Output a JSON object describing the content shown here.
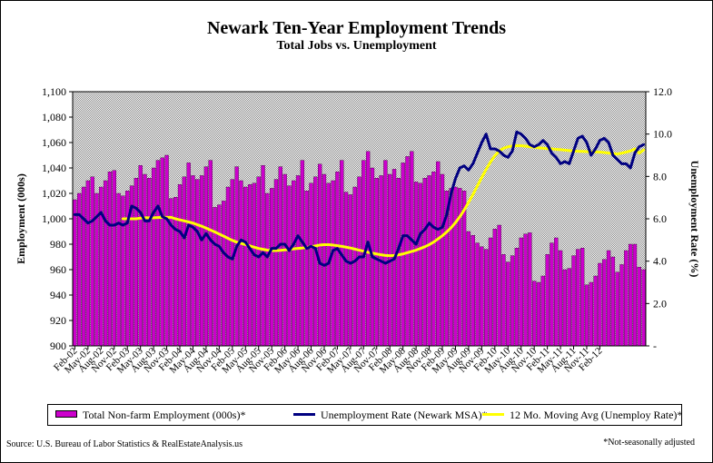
{
  "title": "Newark Ten-Year Employment Trends",
  "subtitle": "Total Jobs vs. Unemployment",
  "legend": [
    "Total Non-farm Employment (000s)*",
    "Unemployment Rate (Newark MSA)*",
    "12 Mo. Moving Avg (Unemploy Rate)*"
  ],
  "source": "Source: U.S. Bureau of Labor Statistics & RealEstateAnalysis.us",
  "footnote": "*Not-seasonally adjusted",
  "colors": {
    "bars": "#CC00CC",
    "unemployment_line": "#000080",
    "moving_avg_line": "#FFFF00",
    "plot_background": "#C8C8C8"
  },
  "chart_data": {
    "type": "bar",
    "xlabel": "",
    "ylabel": "Employment (000s)",
    "y2label": "Unemployment Rate (%)",
    "ylim": [
      900,
      1100
    ],
    "y2lim": [
      0,
      12
    ],
    "yticks": [
      "900",
      "920",
      "940",
      "960",
      "980",
      "1,000",
      "1,020",
      "1,040",
      "1,060",
      "1,080",
      "1,100"
    ],
    "y2ticks": [
      "-",
      "2.0",
      "4.0",
      "6.0",
      "8.0",
      "10.0",
      "12.0"
    ],
    "grid": false,
    "legend_position": "bottom",
    "x_tick_labels": [
      "Feb-02",
      "May-02",
      "Aug-02",
      "Nov-02",
      "Feb-03",
      "May-03",
      "Aug-03",
      "Nov-03",
      "Feb-04",
      "May-04",
      "Aug-04",
      "Nov-04",
      "Feb-05",
      "May-05",
      "Aug-05",
      "Nov-05",
      "Feb-06",
      "May-06",
      "Aug-06",
      "Nov-06",
      "Feb-07",
      "May-07",
      "Aug-07",
      "Nov-07",
      "Feb-08",
      "May-08",
      "Aug-08",
      "Nov-08",
      "Feb-09",
      "May-09",
      "Aug-09",
      "Nov-09",
      "Feb-10",
      "May-10",
      "Aug-10",
      "Nov-10",
      "Feb-11",
      "May-11",
      "Aug-11",
      "Nov-11",
      "Feb-12"
    ],
    "series": [
      {
        "name": "Total Non-farm Employment (000s)*",
        "type": "bar",
        "axis": "left",
        "values": [
          1015,
          1020,
          1025,
          1030,
          1033,
          1020,
          1025,
          1030,
          1037,
          1038,
          1020,
          1018,
          1022,
          1026,
          1032,
          1042,
          1035,
          1032,
          1040,
          1046,
          1048,
          1050,
          1016,
          1017,
          1027,
          1033,
          1044,
          1034,
          1031,
          1034,
          1041,
          1046,
          1009,
          1011,
          1014,
          1025,
          1031,
          1041,
          1030,
          1025,
          1027,
          1028,
          1033,
          1042,
          1020,
          1024,
          1031,
          1041,
          1035,
          1026,
          1030,
          1034,
          1046,
          1022,
          1028,
          1033,
          1043,
          1035,
          1028,
          1030,
          1037,
          1046,
          1021,
          1019,
          1025,
          1033,
          1046,
          1053,
          1040,
          1032,
          1034,
          1046,
          1035,
          1039,
          1032,
          1044,
          1049,
          1053,
          1029,
          1028,
          1032,
          1034,
          1037,
          1045,
          1035,
          1022,
          1024,
          1025,
          1024,
          1022,
          990,
          987,
          981,
          978,
          976,
          985,
          992,
          995,
          972,
          966,
          971,
          977,
          985,
          988,
          989,
          951,
          950,
          955,
          972,
          981,
          985,
          975,
          960,
          961,
          971,
          976,
          977,
          948,
          950,
          955,
          965,
          968,
          975,
          970,
          958,
          964,
          975,
          980,
          980,
          962,
          960
        ]
      },
      {
        "name": "Unemployment Rate (Newark MSA)*",
        "type": "line",
        "axis": "right",
        "values": [
          6.2,
          6.2,
          6.0,
          5.8,
          5.9,
          6.1,
          6.3,
          5.9,
          5.7,
          5.7,
          5.8,
          5.7,
          5.8,
          6.6,
          6.5,
          6.3,
          5.9,
          5.9,
          6.3,
          6.6,
          6.1,
          6.0,
          5.7,
          5.5,
          5.4,
          5.1,
          5.7,
          5.6,
          5.4,
          5.0,
          5.3,
          5.0,
          4.8,
          4.7,
          4.4,
          4.2,
          4.1,
          4.7,
          5.0,
          4.9,
          4.6,
          4.3,
          4.2,
          4.4,
          4.2,
          4.6,
          4.6,
          4.8,
          4.8,
          4.5,
          4.8,
          5.2,
          4.9,
          4.6,
          4.7,
          4.6,
          3.9,
          3.8,
          3.9,
          4.5,
          4.6,
          4.3,
          4.0,
          3.9,
          4.0,
          4.2,
          4.2,
          4.9,
          4.2,
          4.1,
          4.0,
          3.9,
          4.0,
          4.1,
          4.6,
          5.2,
          5.2,
          5.0,
          4.8,
          5.3,
          5.5,
          5.8,
          5.6,
          5.5,
          5.6,
          6.2,
          7.2,
          7.9,
          8.4,
          8.5,
          8.3,
          8.6,
          9.1,
          9.6,
          10.0,
          9.3,
          9.3,
          9.2,
          9.0,
          8.9,
          9.2,
          10.1,
          10.0,
          9.8,
          9.5,
          9.4,
          9.5,
          9.7,
          9.5,
          9.1,
          8.9,
          8.6,
          8.7,
          8.6,
          9.2,
          9.8,
          9.9,
          9.6,
          9.0,
          9.3,
          9.7,
          9.8,
          9.6,
          9.0,
          8.8,
          8.6,
          8.6,
          8.4,
          9.1,
          9.4,
          9.5
        ]
      },
      {
        "name": "12 Mo. Moving Avg (Unemploy Rate)*",
        "type": "line",
        "axis": "right",
        "start_index": 11,
        "values": [
          6.0,
          6.0,
          6.0,
          6.0,
          6.03,
          6.05,
          6.05,
          6.05,
          6.06,
          6.07,
          6.07,
          6.07,
          6.0,
          5.95,
          5.9,
          5.85,
          5.8,
          5.72,
          5.65,
          5.56,
          5.47,
          5.38,
          5.28,
          5.18,
          5.08,
          4.98,
          4.9,
          4.84,
          4.78,
          4.72,
          4.66,
          4.6,
          4.56,
          4.52,
          4.5,
          4.5,
          4.51,
          4.53,
          4.56,
          4.58,
          4.6,
          4.62,
          4.65,
          4.68,
          4.72,
          4.76,
          4.78,
          4.78,
          4.76,
          4.73,
          4.7,
          4.66,
          4.62,
          4.57,
          4.52,
          4.47,
          4.42,
          4.38,
          4.34,
          4.3,
          4.27,
          4.26,
          4.27,
          4.3,
          4.34,
          4.4,
          4.46,
          4.52,
          4.6,
          4.68,
          4.78,
          4.9,
          5.05,
          5.2,
          5.38,
          5.58,
          5.82,
          6.1,
          6.42,
          6.78,
          7.15,
          7.55,
          7.95,
          8.33,
          8.68,
          8.98,
          9.2,
          9.33,
          9.4,
          9.43,
          9.45,
          9.45,
          9.43,
          9.4,
          9.38,
          9.35,
          9.33,
          9.31,
          9.3,
          9.28,
          9.26,
          9.24,
          9.22,
          9.2,
          9.19,
          9.18,
          9.17,
          9.16,
          9.16,
          9.15,
          9.13,
          9.1,
          9.08,
          9.06,
          9.1,
          9.15,
          9.2,
          9.3,
          9.1,
          9.25
        ]
      }
    ]
  }
}
